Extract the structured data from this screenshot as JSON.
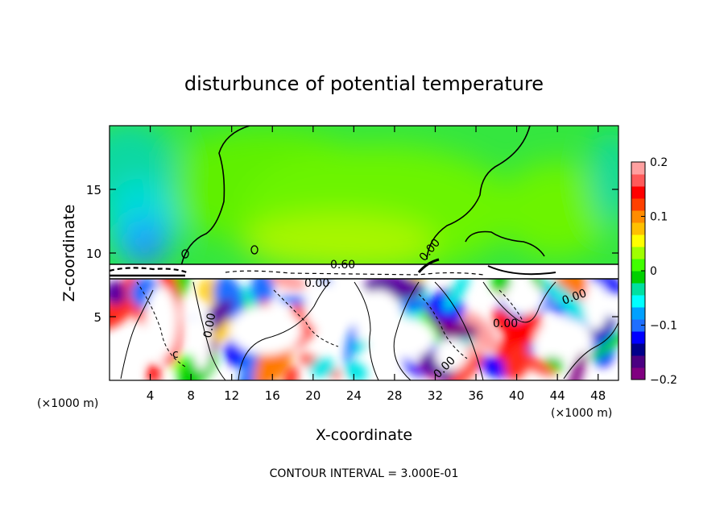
{
  "chart_data": {
    "type": "heatmap",
    "title": "disturbunce of potential temperature",
    "xlabel": "X-coordinate",
    "ylabel": "Z-coordinate",
    "x_unit": "(×1000 m)",
    "z_unit": "(×1000 m)",
    "xlim": [
      0,
      50
    ],
    "ylim": [
      0,
      20
    ],
    "x_ticks": [
      4,
      8,
      12,
      16,
      20,
      24,
      28,
      32,
      36,
      40,
      44,
      48
    ],
    "y_ticks": [
      5,
      10,
      15
    ],
    "colorbar": {
      "range": [
        -0.2,
        0.2
      ],
      "ticks": [
        {
          "value": 0.2,
          "label": "0.2"
        },
        {
          "value": 0.1,
          "label": "0.1"
        },
        {
          "value": 0,
          "label": "0"
        },
        {
          "value": -0.1,
          "label": "−0.1"
        },
        {
          "value": -0.2,
          "label": "−0.2"
        }
      ],
      "colors": [
        "#800080",
        "#4b0082",
        "#00008b",
        "#0000ff",
        "#1e6fff",
        "#00a0ff",
        "#00ffff",
        "#00e0a0",
        "#00d000",
        "#40ff00",
        "#a0ff00",
        "#ffff00",
        "#ffc000",
        "#ff8c00",
        "#ff4000",
        "#ff0000",
        "#ff5a5a",
        "#ffa0a0"
      ]
    },
    "upper_layer": {
      "z_range": [
        9.4,
        20
      ],
      "theta_min": -0.12,
      "theta_max": 0.05,
      "features": "cyan/blue minimum near x=4, z=10; yellow-green maximum near x=20-30"
    },
    "band": {
      "z_range": [
        7.9,
        9.4
      ],
      "color": "#ffffff"
    },
    "lower_layer": {
      "z_range": [
        0,
        7.9
      ],
      "theta_min": -0.2,
      "theta_max": 0.2,
      "description": "turbulent mixed layer with red, blue, purple and white patches"
    },
    "contour_labels": [
      "0.60",
      "0.00",
      "0.00",
      "0.00",
      "0.00",
      "0.00",
      "0.00",
      "c"
    ],
    "contour_interval_text": "CONTOUR INTERVAL = 3.000E-01"
  }
}
